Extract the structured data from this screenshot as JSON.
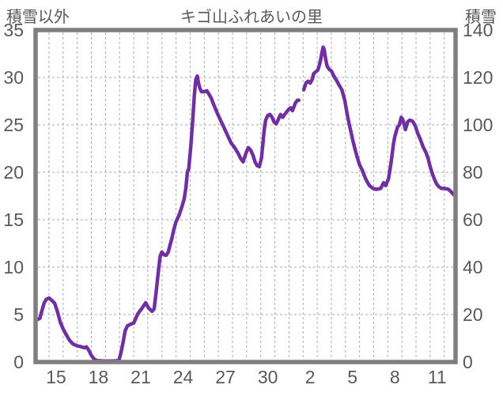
{
  "header": {
    "title": "キゴ山ふれあいの里",
    "left_axis_unit": "積雪以外",
    "right_axis_unit": "積雪"
  },
  "colors": {
    "line": "#7030A0",
    "frame": "#7f7f7f",
    "grid": "#ababab",
    "text": "#595959",
    "background": "#ffffff"
  },
  "chart_data": {
    "type": "line",
    "title": "キゴ山ふれあいの里",
    "series_name": "積雪",
    "legend": "none",
    "grid": "dashed vertical line per day, dashed horizontal line per 5 units (left scale)",
    "y_left": {
      "label": "積雪以外",
      "ticks": [
        35,
        30,
        25,
        20,
        15,
        10,
        5,
        0
      ],
      "range": [
        0,
        35
      ]
    },
    "y_right": {
      "label": "積雪",
      "ticks": [
        140,
        120,
        100,
        80,
        60,
        40,
        20,
        0
      ],
      "range": [
        0,
        140
      ]
    },
    "x_ticks": [
      {
        "label": "15",
        "day": 15
      },
      {
        "label": "18",
        "day": 18
      },
      {
        "label": "21",
        "day": 21
      },
      {
        "label": "24",
        "day": 24
      },
      {
        "label": "27",
        "day": 27
      },
      {
        "label": "30",
        "day": 30
      },
      {
        "label": "2",
        "day": 33
      },
      {
        "label": "5",
        "day": 36
      },
      {
        "label": "8",
        "day": 39
      },
      {
        "label": "11",
        "day": 42
      }
    ],
    "x_range_days": [
      13.55,
      43.3
    ],
    "x_gridline_days_start": 14.5,
    "x_gridline_days_end": 42.5,
    "values_axis": "left scale as read; right 積雪 scale = 4x these values",
    "segments": [
      [
        [
          13.7,
          4.5
        ],
        [
          13.85,
          4.6
        ],
        [
          14.0,
          5.4
        ],
        [
          14.15,
          6.2
        ],
        [
          14.3,
          6.6
        ],
        [
          14.5,
          6.75
        ],
        [
          14.7,
          6.5
        ],
        [
          14.9,
          6.2
        ],
        [
          15.1,
          5.3
        ],
        [
          15.3,
          4.2
        ],
        [
          15.5,
          3.5
        ],
        [
          15.75,
          2.8
        ],
        [
          15.95,
          2.3
        ],
        [
          16.2,
          1.9
        ],
        [
          16.5,
          1.7
        ],
        [
          16.8,
          1.6
        ],
        [
          17.0,
          1.5
        ],
        [
          17.15,
          1.6
        ],
        [
          17.3,
          1.3
        ],
        [
          17.5,
          0.7
        ],
        [
          17.7,
          0.3
        ],
        [
          17.9,
          0.15
        ],
        [
          18.4,
          0.1
        ],
        [
          19.0,
          0.1
        ],
        [
          19.45,
          0.15
        ],
        [
          19.6,
          1.0
        ],
        [
          19.75,
          2.1
        ],
        [
          19.9,
          3.3
        ],
        [
          20.05,
          3.8
        ],
        [
          20.3,
          4.0
        ],
        [
          20.5,
          4.1
        ],
        [
          20.8,
          5.1
        ],
        [
          21.1,
          5.7
        ],
        [
          21.35,
          6.25
        ],
        [
          21.55,
          5.7
        ],
        [
          21.8,
          5.35
        ],
        [
          21.95,
          5.6
        ],
        [
          22.1,
          7.5
        ],
        [
          22.25,
          9.6
        ],
        [
          22.38,
          11.2
        ],
        [
          22.5,
          11.6
        ],
        [
          22.65,
          11.3
        ],
        [
          22.8,
          11.25
        ],
        [
          22.95,
          11.6
        ],
        [
          23.05,
          12.2
        ],
        [
          23.2,
          13.0
        ],
        [
          23.35,
          14.0
        ],
        [
          23.5,
          14.8
        ],
        [
          23.72,
          15.5
        ],
        [
          23.92,
          16.4
        ],
        [
          24.08,
          17.2
        ],
        [
          24.2,
          18.4
        ],
        [
          24.3,
          20.0
        ],
        [
          24.4,
          20.4
        ],
        [
          24.55,
          22.8
        ],
        [
          24.68,
          25.5
        ],
        [
          24.8,
          28.2
        ],
        [
          24.9,
          29.8
        ],
        [
          25.0,
          30.15
        ],
        [
          25.08,
          29.5
        ],
        [
          25.18,
          28.9
        ],
        [
          25.3,
          28.5
        ],
        [
          25.5,
          28.5
        ],
        [
          25.68,
          28.6
        ],
        [
          25.85,
          28.2
        ],
        [
          26.0,
          27.8
        ],
        [
          26.15,
          27.2
        ],
        [
          26.4,
          26.3
        ],
        [
          26.65,
          25.5
        ],
        [
          26.9,
          24.7
        ],
        [
          27.15,
          23.9
        ],
        [
          27.4,
          23.1
        ],
        [
          27.65,
          22.6
        ],
        [
          27.9,
          22.0
        ],
        [
          28.1,
          21.4
        ],
        [
          28.25,
          21.1
        ],
        [
          28.45,
          22.0
        ],
        [
          28.62,
          22.6
        ],
        [
          28.8,
          22.3
        ],
        [
          28.95,
          21.8
        ],
        [
          29.1,
          21.1
        ],
        [
          29.25,
          20.7
        ],
        [
          29.4,
          20.6
        ],
        [
          29.55,
          21.5
        ],
        [
          29.65,
          23.0
        ],
        [
          29.75,
          24.5
        ],
        [
          29.85,
          25.5
        ],
        [
          30.0,
          26.0
        ],
        [
          30.15,
          26.1
        ],
        [
          30.3,
          25.8
        ],
        [
          30.45,
          25.3
        ],
        [
          30.6,
          25.1
        ],
        [
          30.75,
          25.6
        ],
        [
          30.9,
          26.1
        ],
        [
          31.05,
          25.8
        ],
        [
          31.2,
          26.1
        ],
        [
          31.4,
          26.5
        ],
        [
          31.6,
          26.8
        ],
        [
          31.75,
          26.5
        ],
        [
          31.95,
          27.3
        ],
        [
          32.1,
          27.6
        ],
        [
          32.2,
          27.6
        ]
      ],
      [
        [
          32.55,
          28.7
        ],
        [
          32.7,
          29.4
        ],
        [
          32.85,
          29.6
        ],
        [
          33.0,
          29.4
        ],
        [
          33.15,
          29.8
        ],
        [
          33.25,
          30.4
        ],
        [
          33.4,
          30.6
        ],
        [
          33.55,
          30.8
        ],
        [
          33.65,
          31.3
        ],
        [
          33.75,
          31.9
        ],
        [
          33.85,
          32.7
        ],
        [
          33.92,
          33.2
        ],
        [
          34.0,
          32.9
        ],
        [
          34.1,
          31.9
        ],
        [
          34.2,
          31.2
        ],
        [
          34.35,
          30.85
        ],
        [
          34.5,
          30.7
        ],
        [
          34.7,
          30.1
        ],
        [
          34.9,
          29.6
        ],
        [
          35.05,
          29.2
        ],
        [
          35.25,
          28.7
        ],
        [
          35.45,
          27.6
        ],
        [
          35.6,
          26.3
        ],
        [
          35.75,
          25.2
        ],
        [
          35.9,
          24.2
        ],
        [
          36.05,
          23.2
        ],
        [
          36.2,
          22.3
        ],
        [
          36.35,
          21.5
        ],
        [
          36.5,
          20.8
        ],
        [
          36.7,
          20.2
        ],
        [
          36.85,
          19.6
        ],
        [
          37.0,
          19.1
        ],
        [
          37.2,
          18.6
        ],
        [
          37.45,
          18.3
        ],
        [
          37.7,
          18.2
        ],
        [
          38.0,
          18.3
        ],
        [
          38.2,
          18.9
        ],
        [
          38.35,
          18.6
        ],
        [
          38.55,
          19.3
        ],
        [
          38.7,
          20.7
        ],
        [
          38.8,
          21.8
        ],
        [
          38.9,
          23.0
        ],
        [
          39.0,
          23.8
        ],
        [
          39.1,
          24.3
        ],
        [
          39.2,
          24.8
        ],
        [
          39.32,
          25.0
        ],
        [
          39.45,
          25.8
        ],
        [
          39.55,
          25.6
        ],
        [
          39.65,
          25.1
        ],
        [
          39.75,
          24.5
        ],
        [
          39.9,
          25.3
        ],
        [
          40.05,
          25.5
        ],
        [
          40.25,
          25.4
        ],
        [
          40.45,
          24.9
        ],
        [
          40.6,
          24.2
        ],
        [
          40.8,
          23.5
        ],
        [
          41.0,
          22.7
        ],
        [
          41.2,
          22.1
        ],
        [
          41.35,
          21.5
        ],
        [
          41.5,
          20.6
        ],
        [
          41.65,
          19.9
        ],
        [
          41.8,
          19.3
        ],
        [
          41.95,
          18.8
        ],
        [
          42.1,
          18.5
        ],
        [
          42.3,
          18.3
        ],
        [
          42.55,
          18.3
        ],
        [
          42.8,
          18.2
        ],
        [
          42.95,
          18.0
        ],
        [
          43.1,
          17.75
        ],
        [
          43.2,
          17.6
        ]
      ]
    ]
  }
}
